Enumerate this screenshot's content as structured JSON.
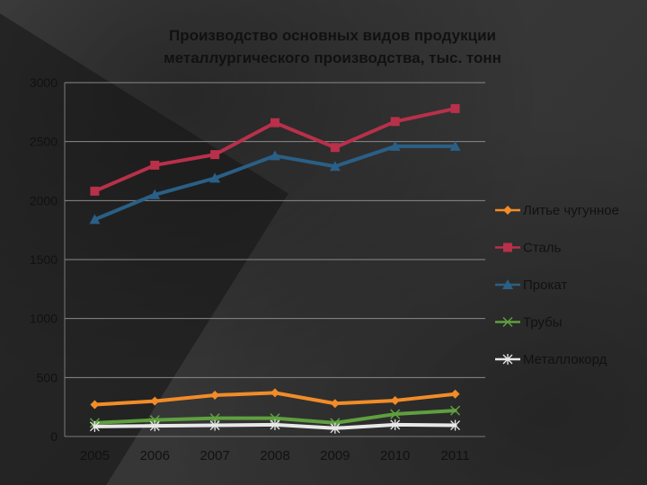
{
  "chart_data": {
    "type": "line",
    "title_line1": "Производство основных видов продукции",
    "title_line2": "металлургического производства, тыс. тонн",
    "xlabel": "",
    "ylabel": "",
    "ylim": [
      0,
      3000
    ],
    "yticks": [
      "0",
      "500",
      "1000",
      "1500",
      "2000",
      "2500",
      "3000"
    ],
    "categories": [
      "2005",
      "2006",
      "2007",
      "2008",
      "2009",
      "2010",
      "2011"
    ],
    "grid": true,
    "legend_position": "right",
    "series": [
      {
        "name": "Литье чугунное",
        "values": [
          270,
          300,
          350,
          370,
          280,
          305,
          360
        ],
        "color": "#f28c28",
        "marker": "diamond"
      },
      {
        "name": "Сталь",
        "values": [
          2080,
          2300,
          2390,
          2660,
          2450,
          2670,
          2780
        ],
        "color": "#b8304a",
        "marker": "square"
      },
      {
        "name": "Прокат",
        "values": [
          1840,
          2050,
          2190,
          2380,
          2290,
          2460,
          2460
        ],
        "color": "#2a5f86",
        "marker": "triangle"
      },
      {
        "name": "Трубы",
        "values": [
          115,
          140,
          155,
          155,
          115,
          190,
          220
        ],
        "color": "#5f9f3f",
        "marker": "x"
      },
      {
        "name": "Металлокорд",
        "values": [
          85,
          90,
          95,
          100,
          70,
          100,
          95
        ],
        "color": "#e8e8e8",
        "marker": "star"
      }
    ]
  }
}
